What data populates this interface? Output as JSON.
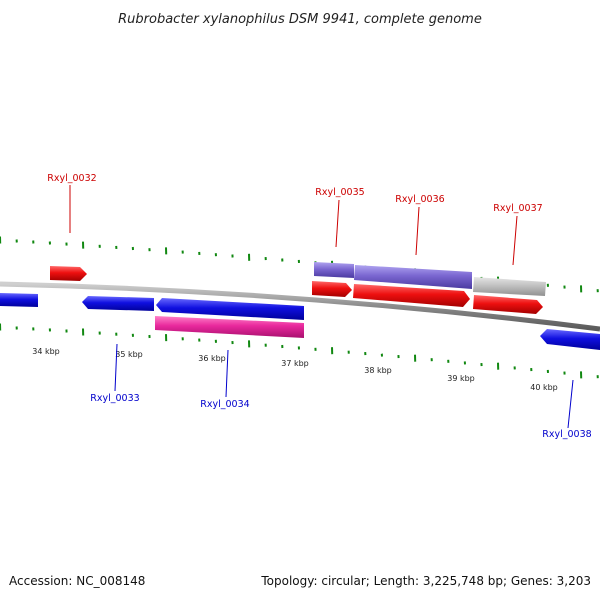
{
  "title": "Rubrobacter xylanophilus DSM 9941, complete genome",
  "footer": {
    "accession": "Accession: NC_008148",
    "topology": "Topology: circular; Length: 3,225,748 bp; Genes: 3,203"
  },
  "colors": {
    "forward_cds": "#e8101a",
    "reverse_cds": "#1414d8",
    "rna_magenta": "#e0289a",
    "purple_track": "#7a66cc",
    "grey_track": "#bbbbbb",
    "backbone": "#777777",
    "tick_green": "#118811",
    "label_forward": "#cc0000",
    "label_reverse": "#0000cc"
  },
  "kbp_labels": [
    "34 kbp",
    "35 kbp",
    "36 kbp",
    "37 kbp",
    "38 kbp",
    "39 kbp",
    "40 kbp"
  ],
  "genes_forward": [
    "Rxyl_0032",
    "Rxyl_0035",
    "Rxyl_0036",
    "Rxyl_0037"
  ],
  "genes_reverse": [
    "Rxyl_0033",
    "Rxyl_0034",
    "Rxyl_0038"
  ]
}
